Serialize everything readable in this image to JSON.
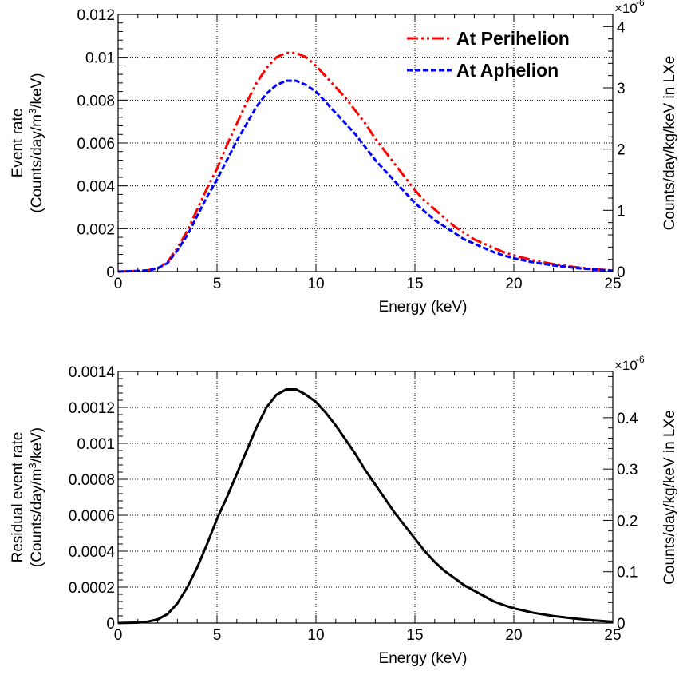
{
  "chart_data": [
    {
      "type": "line",
      "xlabel": "Energy (keV)",
      "ylabel_line1": "Event rate",
      "ylabel_line2_pre": "(Counts/day/m",
      "ylabel_line2_sup": "3",
      "ylabel_line2_post": "/keV)",
      "right_axis_label": "Counts/day/kg/keV in LXe",
      "right_axis_multiplier": "×10",
      "right_axis_exponent": "-6",
      "xlim": [
        0,
        25
      ],
      "ylim": [
        0,
        0.012
      ],
      "right_ylim": [
        0,
        4.2
      ],
      "grid": true,
      "legend_placement": "top-right",
      "xticks": [
        0,
        5,
        10,
        15,
        20,
        25
      ],
      "xtick_labels": [
        "0",
        "5",
        "10",
        "15",
        "20",
        "25"
      ],
      "yticks": [
        0,
        0.002,
        0.004,
        0.006,
        0.008,
        0.01,
        0.012
      ],
      "ytick_labels": [
        "0",
        "0.002",
        "0.004",
        "0.006",
        "0.008",
        "0.01",
        "0.012"
      ],
      "right_yticks": [
        0,
        1,
        2,
        3,
        4
      ],
      "right_ytick_labels": [
        "0",
        "1",
        "2",
        "3",
        "4"
      ],
      "series": [
        {
          "name": "At Perihelion",
          "color": "#ff0000",
          "dash": "dash-dot-dot",
          "x": [
            0,
            1,
            1.5,
            2,
            2.5,
            3,
            3.5,
            4,
            4.5,
            5,
            5.5,
            6,
            6.5,
            7,
            7.5,
            8,
            8.5,
            9,
            9.5,
            10,
            10.5,
            11,
            11.5,
            12,
            12.5,
            13,
            13.5,
            14,
            14.5,
            15,
            15.5,
            16,
            16.5,
            17,
            17.5,
            18,
            18.5,
            19,
            19.5,
            20,
            21,
            22,
            23,
            24,
            25
          ],
          "y": [
            0,
            3e-05,
            6e-05,
            0.00016,
            0.00045,
            0.0011,
            0.0019,
            0.0029,
            0.0039,
            0.0048,
            0.0059,
            0.0069,
            0.0079,
            0.0088,
            0.0095,
            0.01,
            0.0102,
            0.0102,
            0.01,
            0.0096,
            0.0091,
            0.0086,
            0.0081,
            0.0075,
            0.0069,
            0.0062,
            0.0056,
            0.005,
            0.0044,
            0.0038,
            0.0033,
            0.0029,
            0.0025,
            0.0021,
            0.0018,
            0.0015,
            0.0013,
            0.0011,
            0.0009,
            0.00075,
            0.00052,
            0.00035,
            0.00022,
            0.00012,
            5e-05
          ]
        },
        {
          "name": "At Aphelion",
          "color": "#0000ff",
          "dash": "dashed",
          "x": [
            0,
            1,
            1.5,
            2,
            2.5,
            3,
            3.5,
            4,
            4.5,
            5,
            5.5,
            6,
            6.5,
            7,
            7.5,
            8,
            8.5,
            9,
            9.5,
            10,
            10.5,
            11,
            11.5,
            12,
            12.5,
            13,
            13.5,
            14,
            14.5,
            15,
            15.5,
            16,
            16.5,
            17,
            17.5,
            18,
            18.5,
            19,
            19.5,
            20,
            21,
            22,
            23,
            24,
            25
          ],
          "y": [
            0,
            3e-05,
            5e-05,
            0.00015,
            0.0004,
            0.001,
            0.0017,
            0.0026,
            0.0035,
            0.0043,
            0.0052,
            0.0061,
            0.0069,
            0.0077,
            0.0083,
            0.0087,
            0.0089,
            0.0089,
            0.0087,
            0.0084,
            0.0079,
            0.0074,
            0.0069,
            0.0064,
            0.0058,
            0.0052,
            0.0047,
            0.0042,
            0.0037,
            0.0032,
            0.0028,
            0.0024,
            0.0021,
            0.0018,
            0.0015,
            0.0013,
            0.0011,
            0.0009,
            0.00075,
            0.00062,
            0.00043,
            0.00029,
            0.00018,
            0.0001,
            4e-05
          ]
        }
      ]
    },
    {
      "type": "line",
      "xlabel": "Energy (keV)",
      "ylabel_line1": "Residual event rate",
      "ylabel_line2_pre": "(Counts/day/m",
      "ylabel_line2_sup": "3",
      "ylabel_line2_post": "/keV)",
      "right_axis_label": "Counts/day/kg/keV in LXe",
      "right_axis_multiplier": "×10",
      "right_axis_exponent": "-6",
      "xlim": [
        0,
        25
      ],
      "ylim": [
        0,
        0.0014
      ],
      "right_ylim": [
        0,
        0.49
      ],
      "grid": true,
      "xticks": [
        0,
        5,
        10,
        15,
        20,
        25
      ],
      "xtick_labels": [
        "0",
        "5",
        "10",
        "15",
        "20",
        "25"
      ],
      "yticks": [
        0,
        0.0002,
        0.0004,
        0.0006,
        0.0008,
        0.001,
        0.0012,
        0.0014
      ],
      "ytick_labels": [
        "0",
        "0.0002",
        "0.0004",
        "0.0006",
        "0.0008",
        "0.001",
        "0.0012",
        "0.0014"
      ],
      "right_yticks": [
        0,
        0.1,
        0.2,
        0.3,
        0.4
      ],
      "right_ytick_labels": [
        "0",
        "0.1",
        "0.2",
        "0.3",
        "0.4"
      ],
      "series": [
        {
          "color": "#000000",
          "dash": "solid",
          "x": [
            0,
            1,
            1.5,
            2,
            2.5,
            3,
            3.5,
            4,
            4.5,
            5,
            5.5,
            6,
            6.5,
            7,
            7.5,
            8,
            8.5,
            9,
            9.5,
            10,
            10.5,
            11,
            11.5,
            12,
            12.5,
            13,
            13.5,
            14,
            14.5,
            15,
            15.5,
            16,
            16.5,
            17,
            17.5,
            18,
            18.5,
            19,
            19.5,
            20,
            21,
            22,
            23,
            24,
            25
          ],
          "y": [
            0,
            3e-06,
            8e-06,
            2e-05,
            5e-05,
            0.00011,
            0.0002,
            0.00031,
            0.00044,
            0.00058,
            0.0007,
            0.00083,
            0.00096,
            0.00109,
            0.0012,
            0.00127,
            0.0013,
            0.0013,
            0.00127,
            0.00123,
            0.00117,
            0.0011,
            0.00102,
            0.00094,
            0.00085,
            0.00077,
            0.00069,
            0.00061,
            0.00054,
            0.00047,
            0.0004,
            0.00034,
            0.00029,
            0.00025,
            0.00021,
            0.00018,
            0.00015,
            0.00012,
            0.0001,
            8.2e-05,
            5.7e-05,
            3.9e-05,
            2.6e-05,
            1.5e-05,
            7e-06
          ]
        }
      ]
    }
  ]
}
